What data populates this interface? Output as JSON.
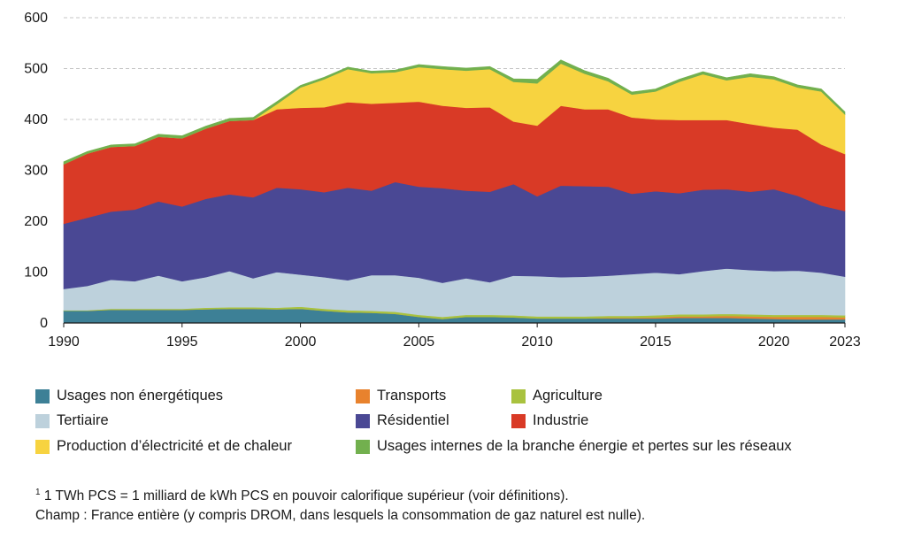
{
  "chart_data": {
    "type": "area",
    "stacked": true,
    "x": [
      1990,
      1991,
      1992,
      1993,
      1994,
      1995,
      1996,
      1997,
      1998,
      1999,
      2000,
      2001,
      2002,
      2003,
      2004,
      2005,
      2006,
      2007,
      2008,
      2009,
      2010,
      2011,
      2012,
      2013,
      2014,
      2015,
      2016,
      2017,
      2018,
      2019,
      2020,
      2021,
      2022,
      2023
    ],
    "x_ticks": [
      1990,
      1995,
      2000,
      2005,
      2010,
      2015,
      2020,
      2023
    ],
    "y_ticks": [
      0,
      100,
      200,
      300,
      400,
      500,
      600
    ],
    "ylim": [
      0,
      600
    ],
    "grid": "horizontal dashed",
    "legend_position": "bottom",
    "title": "",
    "xlabel": "",
    "ylabel": "",
    "series": [
      {
        "name": "Usages non énergétiques",
        "color": "#3d8096",
        "values": [
          24,
          24,
          26,
          26,
          26,
          26,
          27,
          28,
          28,
          27,
          28,
          24,
          21,
          20,
          18,
          12,
          8,
          12,
          12,
          11,
          9,
          9,
          9,
          9,
          9,
          9,
          10,
          10,
          10,
          9,
          8,
          7,
          7,
          7
        ]
      },
      {
        "name": "Transports",
        "color": "#e8822d",
        "values": [
          0,
          0,
          0,
          0,
          0,
          0,
          0,
          0,
          0,
          0,
          0,
          0,
          0,
          0,
          0,
          0,
          0,
          0,
          0,
          0,
          0,
          0,
          0,
          1,
          1,
          2,
          3,
          3,
          4,
          4,
          4,
          5,
          5,
          4
        ]
      },
      {
        "name": "Agriculture",
        "color": "#a9c23f",
        "values": [
          1,
          1,
          2,
          2,
          2,
          2,
          3,
          3,
          3,
          3,
          4,
          4,
          4,
          4,
          4,
          4,
          4,
          4,
          4,
          4,
          4,
          4,
          4,
          4,
          4,
          4,
          4,
          4,
          4,
          4,
          4,
          4,
          4,
          4
        ]
      },
      {
        "name": "Tertiaire",
        "color": "#bdd1dc",
        "values": [
          42,
          48,
          57,
          54,
          65,
          54,
          60,
          71,
          57,
          70,
          63,
          62,
          59,
          70,
          72,
          73,
          67,
          72,
          64,
          78,
          79,
          77,
          78,
          79,
          82,
          84,
          79,
          85,
          89,
          87,
          86,
          87,
          83,
          76
        ]
      },
      {
        "name": "Résidentiel",
        "color": "#4a4894",
        "values": [
          128,
          134,
          134,
          141,
          146,
          147,
          154,
          151,
          159,
          166,
          168,
          167,
          182,
          166,
          183,
          179,
          186,
          172,
          178,
          180,
          157,
          180,
          178,
          175,
          158,
          160,
          159,
          160,
          156,
          154,
          161,
          147,
          132,
          129
        ]
      },
      {
        "name": "Industrie",
        "color": "#d93a26",
        "values": [
          117,
          126,
          127,
          125,
          127,
          134,
          138,
          144,
          152,
          154,
          160,
          167,
          168,
          171,
          156,
          167,
          162,
          163,
          166,
          123,
          139,
          157,
          151,
          152,
          150,
          141,
          144,
          137,
          136,
          133,
          121,
          130,
          120,
          112
        ]
      },
      {
        "name": "Production d’électricité et de chaleur",
        "color": "#f7d340",
        "values": [
          0,
          0,
          0,
          0,
          0,
          0,
          0,
          0,
          0,
          10,
          40,
          55,
          65,
          60,
          60,
          68,
          72,
          73,
          75,
          78,
          83,
          83,
          70,
          55,
          45,
          55,
          75,
          90,
          78,
          93,
          95,
          83,
          104,
          78
        ]
      },
      {
        "name": "Usages internes de la branche énergie et pertes sur les réseaux",
        "color": "#72b04e",
        "values": [
          5,
          4,
          4,
          4,
          5,
          5,
          5,
          5,
          5,
          5,
          4,
          4,
          4,
          4,
          4,
          5,
          5,
          5,
          5,
          6,
          8,
          7,
          6,
          6,
          5,
          5,
          5,
          5,
          5,
          6,
          5,
          5,
          5,
          5
        ]
      }
    ]
  },
  "legend": {
    "items": [
      {
        "label": "Usages non énergétiques",
        "color": "#3d8096"
      },
      {
        "label": "Transports",
        "color": "#e8822d"
      },
      {
        "label": "Agriculture",
        "color": "#a9c23f"
      },
      {
        "label": "Tertiaire",
        "color": "#bdd1dc"
      },
      {
        "label": "Résidentiel",
        "color": "#4a4894"
      },
      {
        "label": "Industrie",
        "color": "#d93a26"
      },
      {
        "label": "Production d’électricité et de chaleur",
        "color": "#f7d340"
      },
      {
        "label": "Usages internes de la branche énergie et pertes sur les réseaux",
        "color": "#72b04e"
      }
    ]
  },
  "notes": {
    "footnote_marker": "1",
    "footnote": " 1 TWh PCS = 1 milliard de kWh PCS en pouvoir calorifique supérieur (voir définitions).",
    "scope": "Champ : France entière (y compris DROM, dans lesquels la consommation de gaz naturel est nulle)."
  }
}
